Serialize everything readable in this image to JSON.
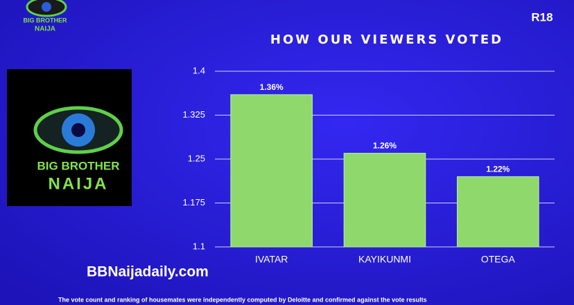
{
  "chart_data": {
    "type": "bar",
    "title": "HOW OUR VIEWERS VOTED",
    "categories": [
      "IVATAR",
      "KAYIKUNMI",
      "OTEGA"
    ],
    "values": [
      1.36,
      1.26,
      1.22
    ],
    "value_labels": [
      "1.36%",
      "1.26%",
      "1.22%"
    ],
    "color": "#8fd86c",
    "ylim": [
      1.1,
      1.4
    ],
    "yticks": [
      1.1,
      1.175,
      1.25,
      1.325,
      1.4
    ],
    "grid": true
  },
  "rating": "R18",
  "logo": {
    "top": "BIG BROTHER",
    "bottom": "NAIJA"
  },
  "watermark": "BBNaijadaily.com",
  "footnote": "The vote count and ranking of housemates were independently computed by Deloitte and confirmed against the vote results"
}
